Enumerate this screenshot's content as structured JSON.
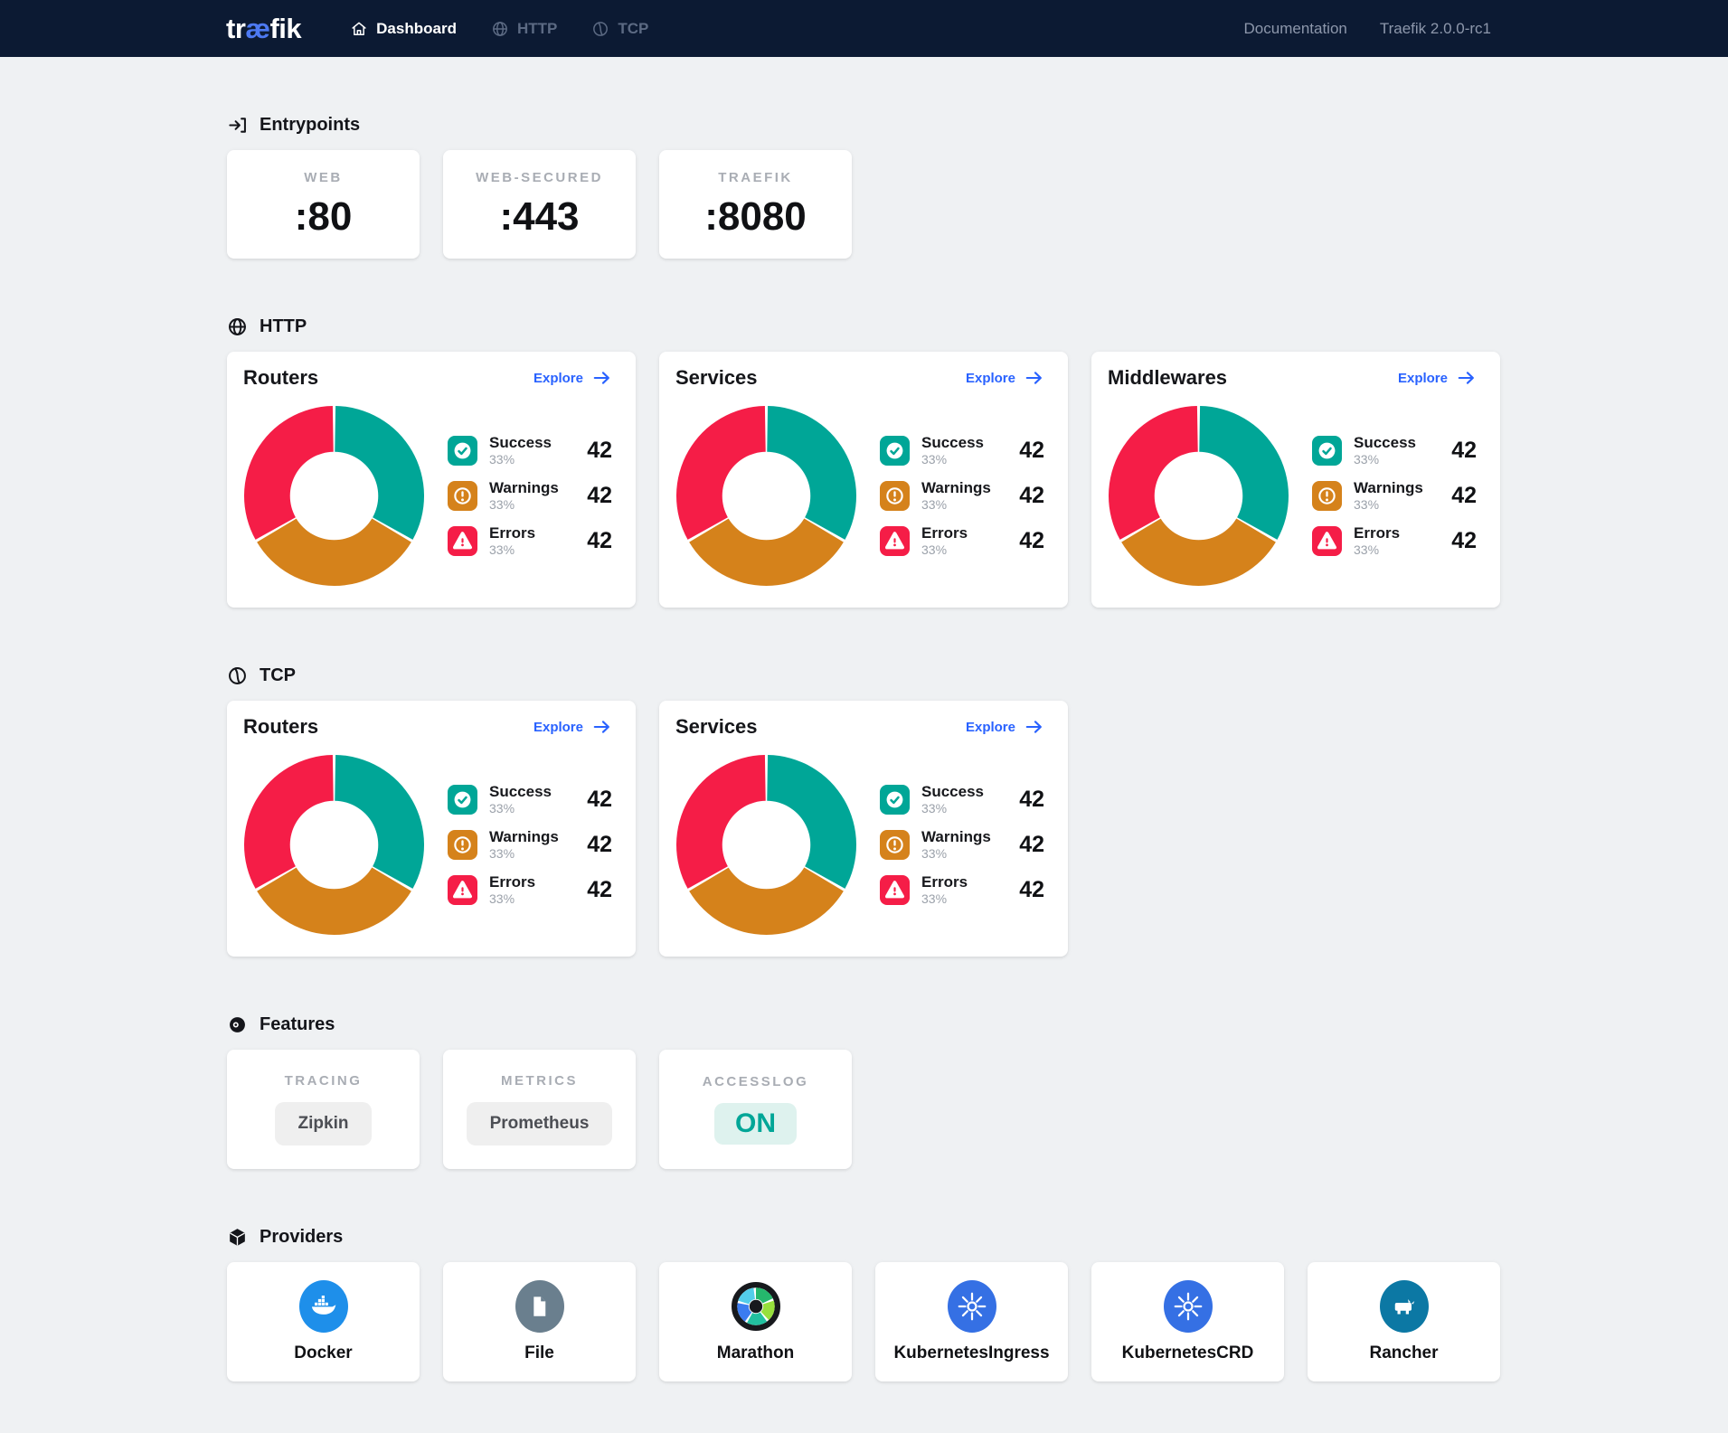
{
  "colors": {
    "success_teal": "#00a697",
    "warning_orange": "#d5821b",
    "error_red": "#f51d47",
    "link_blue": "#2962ff",
    "navbar_navy": "#0c1a33",
    "page_background": "#eff1f3",
    "on_pill_background": "#def2ee"
  },
  "navbar": {
    "logo": {
      "pre": "tr",
      "ae": "æ",
      "post": "fik"
    },
    "items": [
      {
        "label": "Dashboard",
        "icon": "home-icon",
        "active": true
      },
      {
        "label": "HTTP",
        "icon": "globe-icon",
        "active": false
      },
      {
        "label": "TCP",
        "icon": "tcp-icon",
        "active": false
      }
    ],
    "doc_link": "Documentation",
    "version": "Traefik 2.0.0-rc1"
  },
  "entrypoints": {
    "heading": "Entrypoints",
    "cards": [
      {
        "label": "WEB",
        "port": ":80"
      },
      {
        "label": "WEB-SECURED",
        "port": ":443"
      },
      {
        "label": "TRAEFIK",
        "port": ":8080"
      }
    ]
  },
  "http": {
    "heading": "HTTP",
    "cards": [
      {
        "title": "Routers",
        "explore_label": "Explore",
        "legend": [
          {
            "kind": "success",
            "label": "Success",
            "pct": "33%",
            "value": "42"
          },
          {
            "kind": "warning",
            "label": "Warnings",
            "pct": "33%",
            "value": "42"
          },
          {
            "kind": "error",
            "label": "Errors",
            "pct": "33%",
            "value": "42"
          }
        ],
        "donut": {
          "values": [
            33.33,
            33.33,
            33.34
          ],
          "colors": [
            "#00a697",
            "#d5821b",
            "#f51d47"
          ]
        }
      },
      {
        "title": "Services",
        "explore_label": "Explore",
        "legend": [
          {
            "kind": "success",
            "label": "Success",
            "pct": "33%",
            "value": "42"
          },
          {
            "kind": "warning",
            "label": "Warnings",
            "pct": "33%",
            "value": "42"
          },
          {
            "kind": "error",
            "label": "Errors",
            "pct": "33%",
            "value": "42"
          }
        ],
        "donut": {
          "values": [
            33.33,
            33.33,
            33.34
          ],
          "colors": [
            "#00a697",
            "#d5821b",
            "#f51d47"
          ]
        }
      },
      {
        "title": "Middlewares",
        "explore_label": "Explore",
        "legend": [
          {
            "kind": "success",
            "label": "Success",
            "pct": "33%",
            "value": "42"
          },
          {
            "kind": "warning",
            "label": "Warnings",
            "pct": "33%",
            "value": "42"
          },
          {
            "kind": "error",
            "label": "Errors",
            "pct": "33%",
            "value": "42"
          }
        ],
        "donut": {
          "values": [
            33.33,
            33.33,
            33.34
          ],
          "colors": [
            "#00a697",
            "#d5821b",
            "#f51d47"
          ]
        }
      }
    ]
  },
  "tcp": {
    "heading": "TCP",
    "cards": [
      {
        "title": "Routers",
        "explore_label": "Explore",
        "legend": [
          {
            "kind": "success",
            "label": "Success",
            "pct": "33%",
            "value": "42"
          },
          {
            "kind": "warning",
            "label": "Warnings",
            "pct": "33%",
            "value": "42"
          },
          {
            "kind": "error",
            "label": "Errors",
            "pct": "33%",
            "value": "42"
          }
        ],
        "donut": {
          "values": [
            33.33,
            33.33,
            33.34
          ],
          "colors": [
            "#00a697",
            "#d5821b",
            "#f51d47"
          ]
        }
      },
      {
        "title": "Services",
        "explore_label": "Explore",
        "legend": [
          {
            "kind": "success",
            "label": "Success",
            "pct": "33%",
            "value": "42"
          },
          {
            "kind": "warning",
            "label": "Warnings",
            "pct": "33%",
            "value": "42"
          },
          {
            "kind": "error",
            "label": "Errors",
            "pct": "33%",
            "value": "42"
          }
        ],
        "donut": {
          "values": [
            33.33,
            33.33,
            33.34
          ],
          "colors": [
            "#00a697",
            "#d5821b",
            "#f51d47"
          ]
        }
      }
    ]
  },
  "features": {
    "heading": "Features",
    "cards": [
      {
        "label": "TRACING",
        "value": "Zipkin"
      },
      {
        "label": "METRICS",
        "value": "Prometheus"
      },
      {
        "label": "ACCESSLOG",
        "value": "ON"
      }
    ]
  },
  "providers": {
    "heading": "Providers",
    "cards": [
      {
        "label": "Docker",
        "icon": "docker-icon"
      },
      {
        "label": "File",
        "icon": "file-icon"
      },
      {
        "label": "Marathon",
        "icon": "marathon-icon"
      },
      {
        "label": "KubernetesIngress",
        "icon": "kubernetes-icon"
      },
      {
        "label": "KubernetesCRD",
        "icon": "kubernetes-icon"
      },
      {
        "label": "Rancher",
        "icon": "rancher-icon"
      }
    ]
  },
  "chart_data": [
    {
      "type": "pie",
      "title": "HTTP Routers",
      "labels": [
        "Success",
        "Warnings",
        "Errors"
      ],
      "values": [
        33.33,
        33.33,
        33.34
      ],
      "counts": [
        42,
        42,
        42
      ],
      "colors": [
        "#00a697",
        "#d5821b",
        "#f51d47"
      ],
      "inner_radius_ratio": 0.49,
      "legend_position": "right"
    },
    {
      "type": "pie",
      "title": "HTTP Services",
      "labels": [
        "Success",
        "Warnings",
        "Errors"
      ],
      "values": [
        33.33,
        33.33,
        33.34
      ],
      "counts": [
        42,
        42,
        42
      ],
      "colors": [
        "#00a697",
        "#d5821b",
        "#f51d47"
      ],
      "inner_radius_ratio": 0.49,
      "legend_position": "right"
    },
    {
      "type": "pie",
      "title": "HTTP Middlewares",
      "labels": [
        "Success",
        "Warnings",
        "Errors"
      ],
      "values": [
        33.33,
        33.33,
        33.34
      ],
      "counts": [
        42,
        42,
        42
      ],
      "colors": [
        "#00a697",
        "#d5821b",
        "#f51d47"
      ],
      "inner_radius_ratio": 0.49,
      "legend_position": "right"
    },
    {
      "type": "pie",
      "title": "TCP Routers",
      "labels": [
        "Success",
        "Warnings",
        "Errors"
      ],
      "values": [
        33.33,
        33.33,
        33.34
      ],
      "counts": [
        42,
        42,
        42
      ],
      "colors": [
        "#00a697",
        "#d5821b",
        "#f51d47"
      ],
      "inner_radius_ratio": 0.49,
      "legend_position": "right"
    },
    {
      "type": "pie",
      "title": "TCP Services",
      "labels": [
        "Success",
        "Warnings",
        "Errors"
      ],
      "values": [
        33.33,
        33.33,
        33.34
      ],
      "counts": [
        42,
        42,
        42
      ],
      "colors": [
        "#00a697",
        "#d5821b",
        "#f51d47"
      ],
      "inner_radius_ratio": 0.49,
      "legend_position": "right"
    }
  ]
}
